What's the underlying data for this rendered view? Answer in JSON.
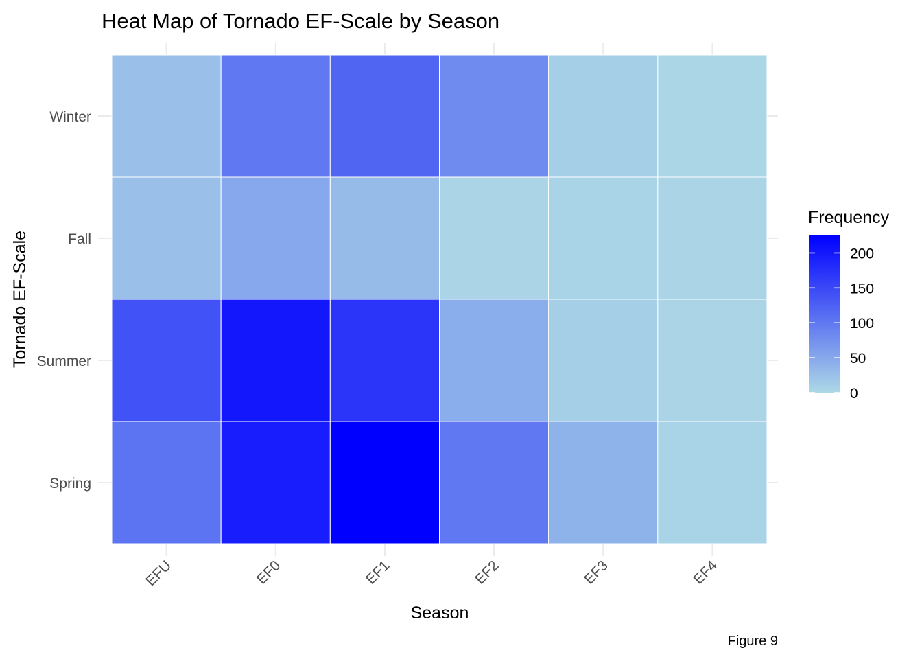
{
  "chart_data": {
    "type": "heatmap",
    "title": "Heat Map of Tornado EF-Scale by Season",
    "xlabel": "Season",
    "ylabel": "Tornado EF-Scale",
    "caption": "Figure 9",
    "x_categories": [
      "EFU",
      "EF0",
      "EF1",
      "EF2",
      "EF3",
      "EF4"
    ],
    "y_categories": [
      "Spring",
      "Summer",
      "Fall",
      "Winter"
    ],
    "values": [
      [
        105,
        195,
        225,
        100,
        40,
        5
      ],
      [
        140,
        200,
        170,
        45,
        10,
        3
      ],
      [
        25,
        50,
        30,
        3,
        5,
        3
      ],
      [
        25,
        100,
        120,
        80,
        10,
        2
      ]
    ],
    "legend": {
      "title": "Frequency",
      "ticks": [
        0,
        50,
        100,
        150,
        200
      ],
      "range": [
        0,
        225
      ],
      "low_color": "#add8e6",
      "high_color": "#0000ff"
    },
    "grid": true
  }
}
